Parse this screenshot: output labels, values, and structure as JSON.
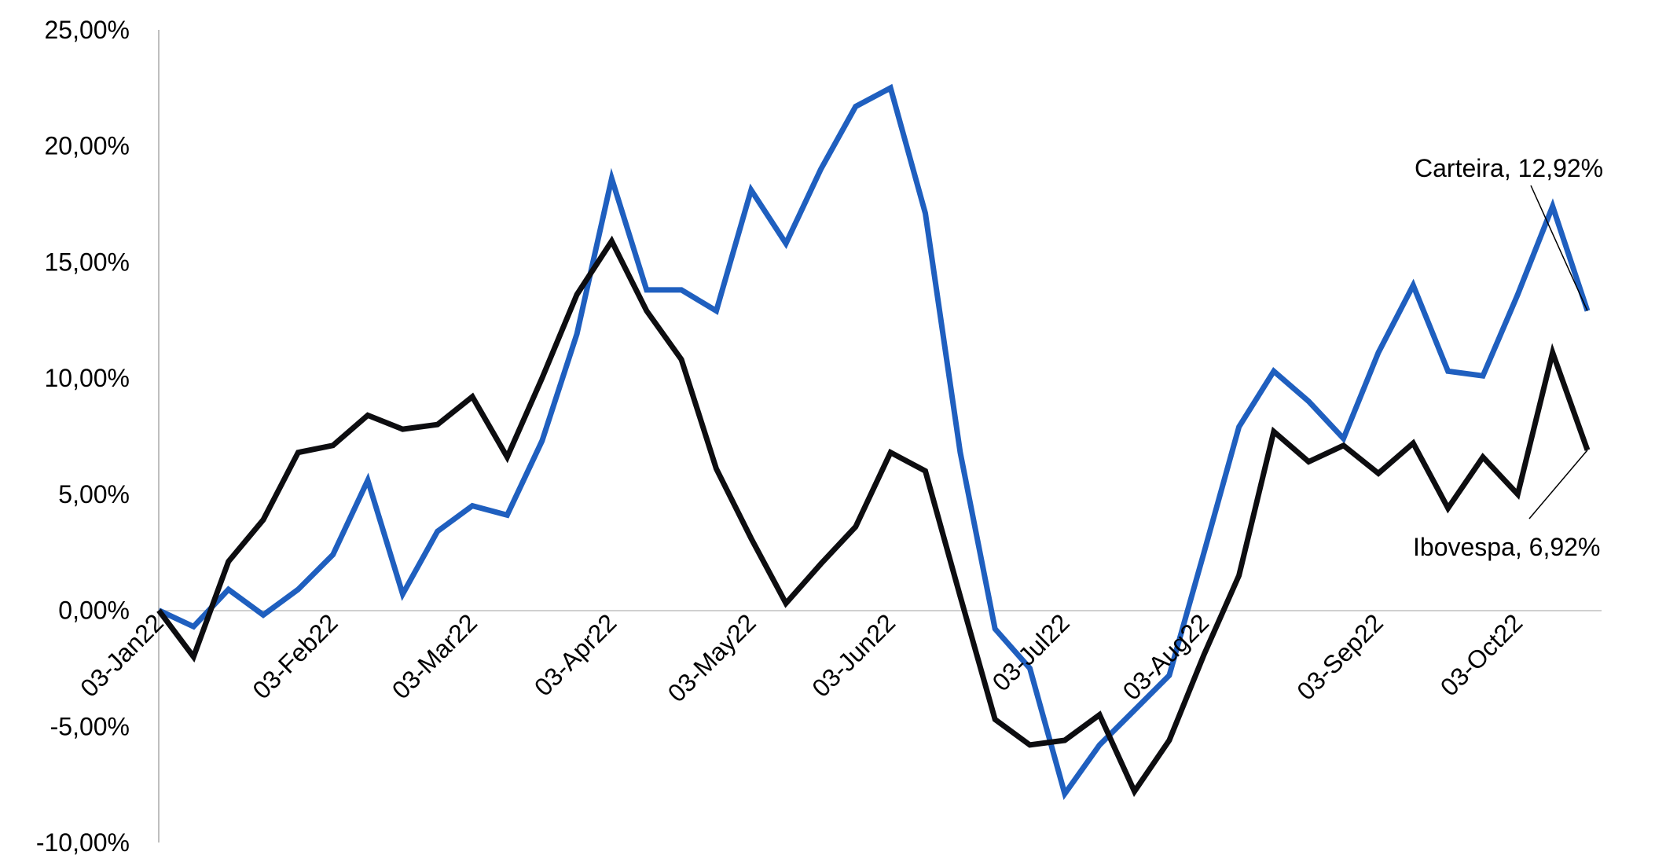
{
  "chart_data": {
    "type": "line",
    "title": "",
    "xlabel": "",
    "ylabel": "",
    "ylim": [
      -10,
      25
    ],
    "yticks": [
      -10,
      -5,
      0,
      5,
      10,
      15,
      20,
      25
    ],
    "ytick_labels": [
      "-10,00%",
      "-5,00%",
      "0,00%",
      "5,00%",
      "10,00%",
      "15,00%",
      "20,00%",
      "25,00%"
    ],
    "xtick_labels": [
      "03-Jan22",
      "03-Feb22",
      "03-Mar22",
      "03-Apr22",
      "03-May22",
      "03-Jun22",
      "03-Jul22",
      "03-Aug22",
      "03-Sep22",
      "03-Oct22"
    ],
    "xtick_index": [
      0,
      5,
      9,
      13,
      17,
      21,
      26,
      30,
      35,
      39
    ],
    "grid": false,
    "series": [
      {
        "name": "Carteira",
        "color": "#1f5fbf",
        "values": [
          0,
          -0.7,
          0.9,
          -0.2,
          0.9,
          2.4,
          5.6,
          0.7,
          3.4,
          4.5,
          4.1,
          7.3,
          11.9,
          18.6,
          13.8,
          13.8,
          12.9,
          18.1,
          15.8,
          19.0,
          21.7,
          22.5,
          17.1,
          6.8,
          -0.8,
          -2.5,
          -7.9,
          -5.8,
          -4.3,
          -2.8,
          2.5,
          7.9,
          10.3,
          9.0,
          7.4,
          11.1,
          14.0,
          10.3,
          10.1,
          13.6,
          17.4,
          12.9
        ],
        "end_label": "Carteira,  12,92%"
      },
      {
        "name": "Ibovespa",
        "color": "#0d0d10",
        "values": [
          0,
          -2.0,
          2.1,
          3.9,
          6.8,
          7.1,
          8.4,
          7.8,
          8.0,
          9.2,
          6.6,
          10.0,
          13.6,
          15.9,
          12.9,
          10.8,
          6.1,
          3.1,
          0.3,
          2.0,
          3.6,
          6.8,
          6.0,
          0.6,
          -4.7,
          -5.8,
          -5.6,
          -4.5,
          -7.8,
          -5.6,
          -1.9,
          1.5,
          7.7,
          6.4,
          7.1,
          5.9,
          7.2,
          4.4,
          6.6,
          5.0,
          11.1,
          6.9
        ],
        "end_label": "Ibovespa,   6,92%"
      }
    ]
  }
}
